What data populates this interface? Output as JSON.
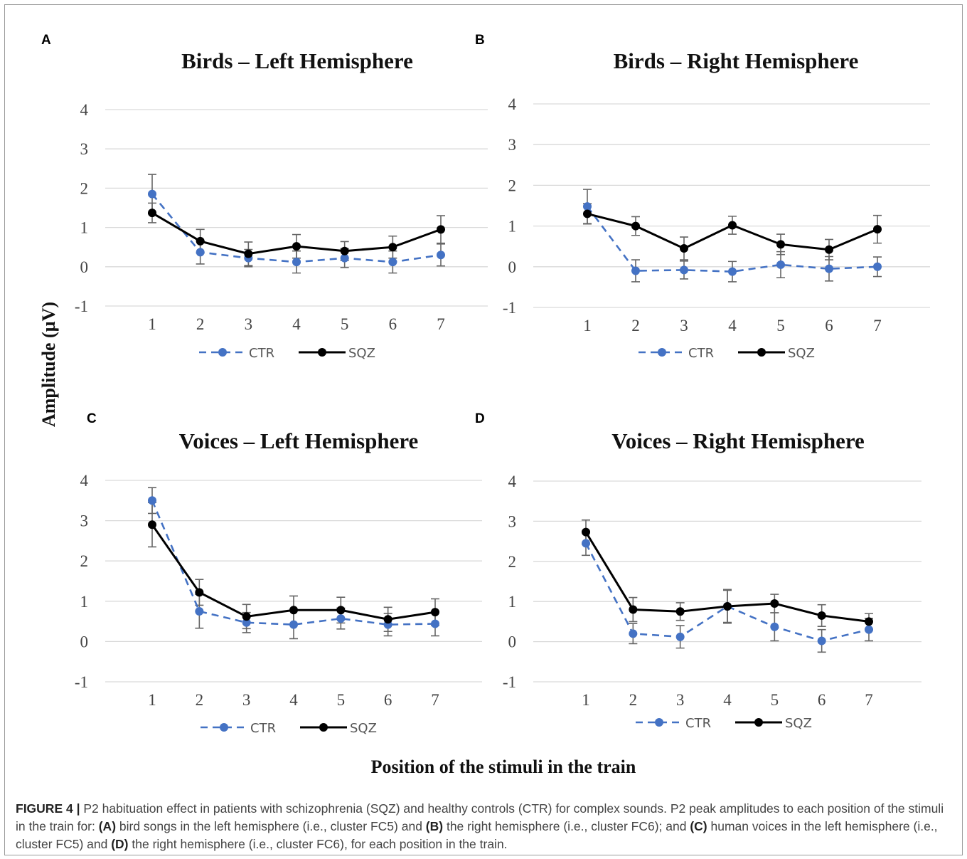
{
  "figure": {
    "y_axis_label": "Amplitude (µV)",
    "x_axis_label": "Position of the stimuli in the train",
    "colors": {
      "ctr": "#4472c4",
      "sqz": "#000000"
    }
  },
  "chart_data": [
    {
      "type": "line",
      "panel": "A",
      "title": "Birds – Left Hemisphere",
      "x": [
        1,
        2,
        3,
        4,
        5,
        6,
        7
      ],
      "ylim": [
        -1,
        4
      ],
      "yticks": [
        -1,
        0,
        1,
        2,
        3,
        4
      ],
      "grid": true,
      "legend": "bottom",
      "series": [
        {
          "name": "CTR",
          "style": "dashed",
          "values": [
            1.85,
            0.37,
            0.22,
            0.12,
            0.22,
            0.12,
            0.3
          ],
          "err": [
            0.5,
            0.3,
            0.22,
            0.28,
            0.24,
            0.28,
            0.28
          ]
        },
        {
          "name": "SQZ",
          "style": "solid",
          "values": [
            1.37,
            0.65,
            0.33,
            0.52,
            0.4,
            0.5,
            0.95
          ],
          "err": [
            0.25,
            0.3,
            0.3,
            0.3,
            0.24,
            0.28,
            0.35
          ]
        }
      ]
    },
    {
      "type": "line",
      "panel": "B",
      "title": "Birds – Right Hemisphere",
      "x": [
        1,
        2,
        3,
        4,
        5,
        6,
        7
      ],
      "ylim": [
        -1,
        4
      ],
      "yticks": [
        -1,
        0,
        1,
        2,
        3,
        4
      ],
      "grid": true,
      "legend": "bottom",
      "series": [
        {
          "name": "CTR",
          "style": "dashed",
          "values": [
            1.48,
            -0.1,
            -0.08,
            -0.12,
            0.05,
            -0.05,
            0.0
          ],
          "err": [
            0.42,
            0.27,
            0.22,
            0.25,
            0.32,
            0.3,
            0.24
          ]
        },
        {
          "name": "SQZ",
          "style": "solid",
          "values": [
            1.3,
            1.0,
            0.45,
            1.02,
            0.55,
            0.42,
            0.92
          ],
          "err": [
            0.25,
            0.23,
            0.28,
            0.22,
            0.25,
            0.25,
            0.34
          ]
        }
      ]
    },
    {
      "type": "line",
      "panel": "C",
      "title": "Voices – Left Hemisphere",
      "x": [
        1,
        2,
        3,
        4,
        5,
        6,
        7
      ],
      "ylim": [
        -1,
        4
      ],
      "yticks": [
        -1,
        0,
        1,
        2,
        3,
        4
      ],
      "grid": true,
      "legend": "bottom",
      "series": [
        {
          "name": "CTR",
          "style": "dashed",
          "values": [
            3.5,
            0.75,
            0.47,
            0.42,
            0.57,
            0.42,
            0.44
          ],
          "err": [
            0.32,
            0.42,
            0.25,
            0.35,
            0.26,
            0.28,
            0.3
          ]
        },
        {
          "name": "SQZ",
          "style": "solid",
          "values": [
            2.9,
            1.22,
            0.62,
            0.78,
            0.78,
            0.55,
            0.73
          ],
          "err": [
            0.55,
            0.32,
            0.3,
            0.35,
            0.32,
            0.3,
            0.33
          ]
        }
      ]
    },
    {
      "type": "line",
      "panel": "D",
      "title": "Voices – Right Hemisphere",
      "x": [
        1,
        2,
        3,
        4,
        5,
        6,
        7
      ],
      "ylim": [
        -1,
        4
      ],
      "yticks": [
        -1,
        0,
        1,
        2,
        3,
        4
      ],
      "grid": true,
      "legend": "bottom",
      "series": [
        {
          "name": "CTR",
          "style": "dashed",
          "values": [
            2.45,
            0.2,
            0.12,
            0.88,
            0.37,
            0.02,
            0.3
          ],
          "err": [
            0.3,
            0.25,
            0.28,
            0.42,
            0.35,
            0.28,
            0.28
          ]
        },
        {
          "name": "SQZ",
          "style": "solid",
          "values": [
            2.73,
            0.8,
            0.75,
            0.88,
            0.95,
            0.65,
            0.5
          ],
          "err": [
            0.3,
            0.3,
            0.22,
            0.4,
            0.23,
            0.27,
            0.2
          ]
        }
      ]
    }
  ],
  "caption": {
    "label": "FIGURE 4 |",
    "intro": " P2 habituation effect in patients with schizophrenia (SQZ) and healthy controls (CTR) for complex sounds. P2 peak amplitudes to each position of the stimuli in the train for: ",
    "a_tag": "(A)",
    "a_text": " bird songs in the left hemisphere (i.e., cluster FC5) and ",
    "b_tag": "(B)",
    "b_text": " the right hemisphere (i.e., cluster FC6); and ",
    "c_tag": "(C)",
    "c_text": " human voices in the left hemisphere (i.e., cluster FC5) and ",
    "d_tag": "(D)",
    "d_text": " the right hemisphere (i.e., cluster FC6), for each position in the train."
  }
}
